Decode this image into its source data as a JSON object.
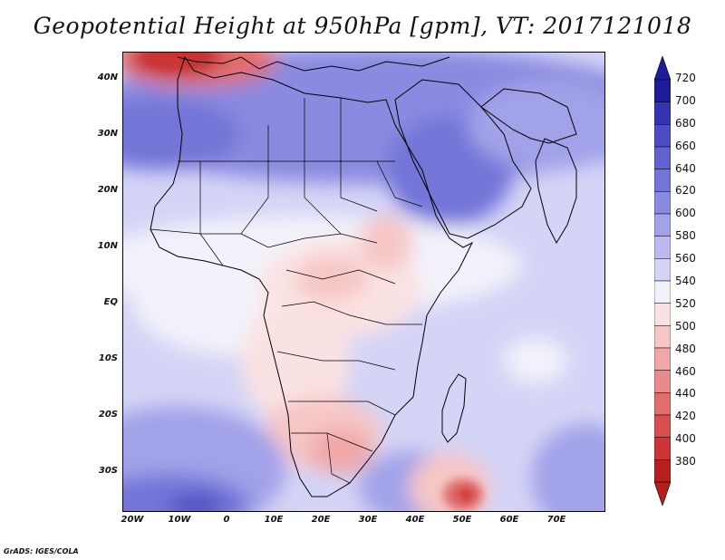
{
  "title": "Geopotential Height at 950hPa [gpm], VT: 2017121018",
  "credit": "GrADS: IGES/COLA",
  "map": {
    "lat_ticks": [
      "40N",
      "30N",
      "20N",
      "10N",
      "EQ",
      "10S",
      "20S",
      "30S"
    ],
    "lon_ticks": [
      "20W",
      "10W",
      "0",
      "10E",
      "20E",
      "30E",
      "40E",
      "50E",
      "60E",
      "70E"
    ]
  },
  "legend": {
    "levels": [
      "720",
      "700",
      "680",
      "660",
      "640",
      "620",
      "600",
      "580",
      "560",
      "540",
      "520",
      "500",
      "480",
      "460",
      "440",
      "420",
      "400",
      "380"
    ],
    "colors": [
      "#1d1d9a",
      "#3434b0",
      "#4d4dc2",
      "#6161cf",
      "#7474d8",
      "#8a8ae0",
      "#a2a2e9",
      "#babaf0",
      "#d4d4f6",
      "#f2f2fb",
      "#fbe2e2",
      "#f6c6c6",
      "#f0a7a7",
      "#ea8b8b",
      "#e26d6d",
      "#d84f4f",
      "#cd3434",
      "#b71e1e"
    ]
  }
}
